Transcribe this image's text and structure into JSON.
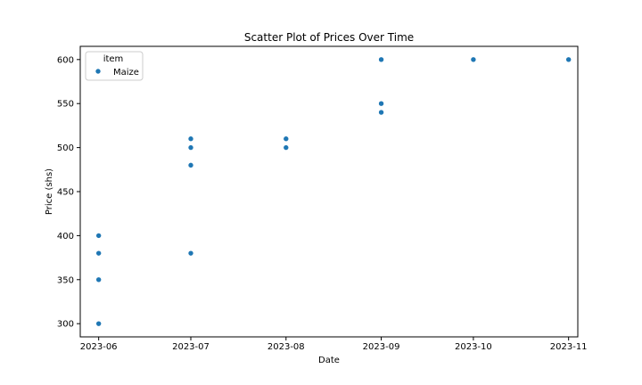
{
  "chart_data": {
    "type": "scatter",
    "title": "Scatter Plot of Prices Over Time",
    "xlabel": "Date",
    "ylabel": "Price (shs)",
    "legend": {
      "title": "item",
      "placement": "top-left",
      "entries": [
        "Maize"
      ]
    },
    "grid": false,
    "xlim": [
      "2023-05-26",
      "2023-11-04"
    ],
    "ylim": [
      285,
      615
    ],
    "x_ticks": [
      "2023-06-01",
      "2023-07-01",
      "2023-08-01",
      "2023-09-01",
      "2023-10-01",
      "2023-11-01"
    ],
    "x_tick_labels": [
      "2023-06",
      "2023-07",
      "2023-08",
      "2023-09",
      "2023-10",
      "2023-11"
    ],
    "y_ticks": [
      300,
      350,
      400,
      450,
      500,
      550,
      600
    ],
    "series": [
      {
        "name": "Maize",
        "color": "#1f77b4",
        "points": [
          {
            "x": "2023-06-01",
            "y": 300
          },
          {
            "x": "2023-06-01",
            "y": 350
          },
          {
            "x": "2023-06-01",
            "y": 380
          },
          {
            "x": "2023-06-01",
            "y": 400
          },
          {
            "x": "2023-07-01",
            "y": 380
          },
          {
            "x": "2023-07-01",
            "y": 480
          },
          {
            "x": "2023-07-01",
            "y": 500
          },
          {
            "x": "2023-07-01",
            "y": 510
          },
          {
            "x": "2023-08-01",
            "y": 500
          },
          {
            "x": "2023-08-01",
            "y": 510
          },
          {
            "x": "2023-09-01",
            "y": 540
          },
          {
            "x": "2023-09-01",
            "y": 550
          },
          {
            "x": "2023-09-01",
            "y": 600
          },
          {
            "x": "2023-10-01",
            "y": 600
          },
          {
            "x": "2023-11-01",
            "y": 600
          }
        ]
      }
    ]
  }
}
